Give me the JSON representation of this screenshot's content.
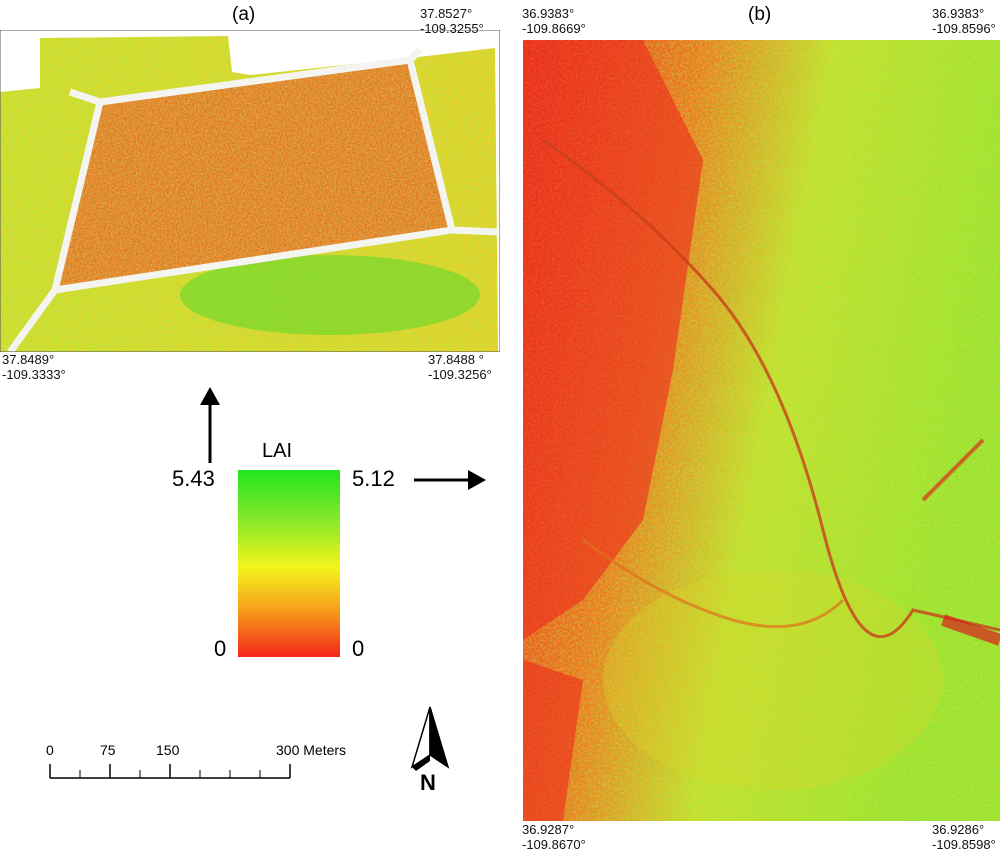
{
  "panel_a": {
    "label": "(a)",
    "top_right": [
      "37.8527°",
      "-109.3255°"
    ],
    "bottom_left": [
      "37.8489°",
      "-109.3333°"
    ],
    "bottom_right": [
      "37.8488 °",
      "-109.3256°"
    ]
  },
  "panel_b": {
    "label": "(b)",
    "top_left": [
      "36.9383°",
      "-109.8669°"
    ],
    "top_right": [
      "36.9383°",
      "-109.8596°"
    ],
    "bottom_left": [
      "36.9287°",
      "-109.8670°"
    ],
    "bottom_right": [
      "36.9286°",
      "-109.8598°"
    ]
  },
  "legend": {
    "title": "LAI",
    "left_max": "5.43",
    "left_min": "0",
    "right_max": "5.12",
    "right_min": "0",
    "colors": [
      "#22e61e",
      "#f4f41c",
      "#f4261a"
    ]
  },
  "scale_bar": {
    "ticks": [
      "0",
      "75",
      "150",
      "300 Meters"
    ]
  },
  "north_arrow": {
    "label": "N"
  }
}
